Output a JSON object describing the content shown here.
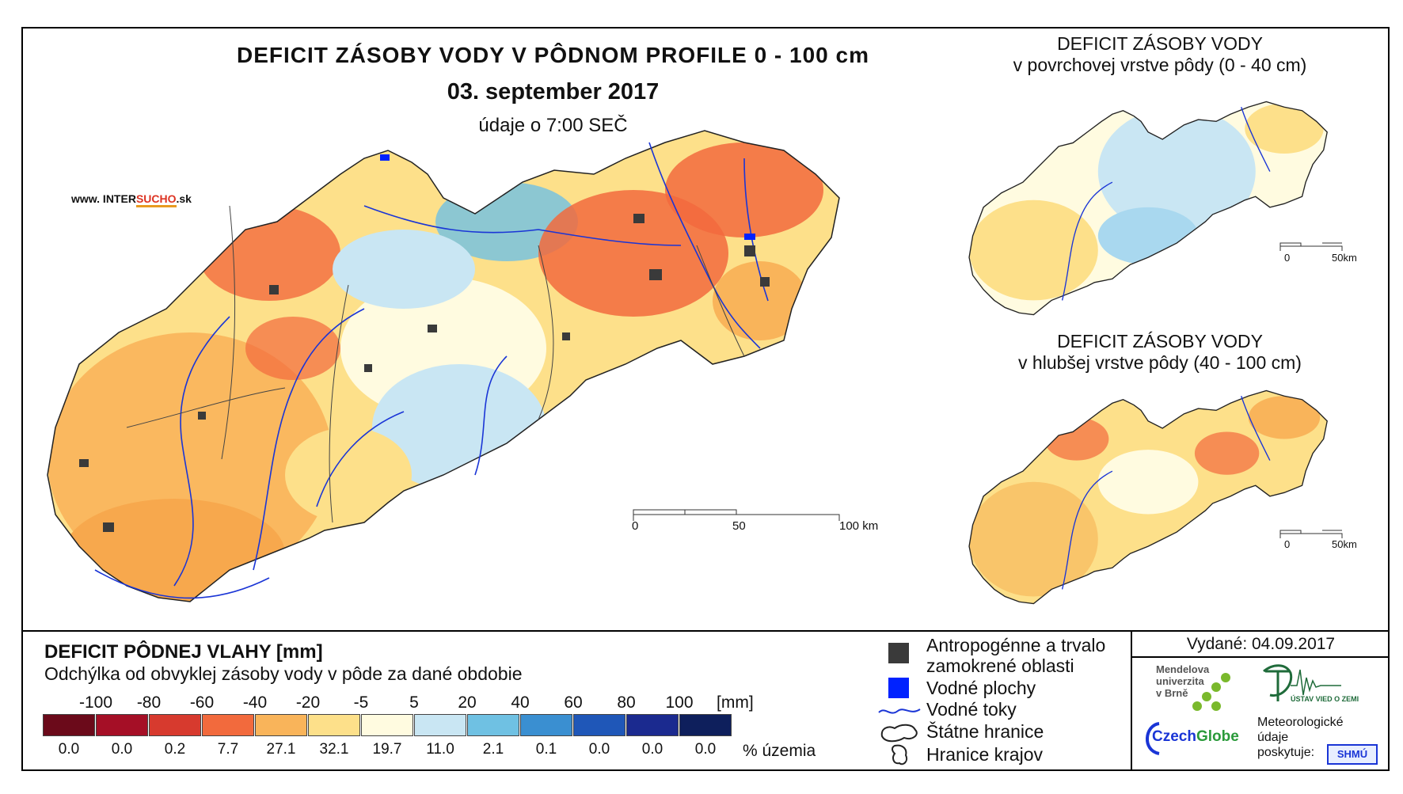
{
  "main": {
    "title": "DEFICIT ZÁSOBY VODY V PÔDNOM PROFILE 0 - 100 cm",
    "date": "03. september 2017",
    "subtitle": "údaje o 7:00 SEČ",
    "website_prefix": "www. INTER",
    "website_mid": "SUCHO",
    "website_suffix": ".sk",
    "scale": {
      "labels": [
        "0",
        "50",
        "100 km"
      ]
    }
  },
  "inset_top": {
    "title_line1": "DEFICIT ZÁSOBY VODY",
    "title_line2": "v povrchovej vrstve pôdy (0 - 40 cm)",
    "scale_labels": [
      "0",
      "50km"
    ]
  },
  "inset_bottom": {
    "title_line1": "DEFICIT ZÁSOBY VODY",
    "title_line2": "v hlubšej vrstve pôdy (40 - 100 cm)",
    "scale_labels": [
      "0",
      "50km"
    ]
  },
  "legend": {
    "title": "DEFICIT PÔDNEJ VLAHY [mm]",
    "subtitle": "Odchýlka od obvyklej zásoby vody v pôde za dané obdobie",
    "thresholds": [
      "-100",
      "-80",
      "-60",
      "-40",
      "-20",
      "-5",
      "5",
      "20",
      "40",
      "60",
      "80",
      "100"
    ],
    "unit": "[mm]",
    "colors": [
      "#6b0a1a",
      "#a50f26",
      "#d73a2e",
      "#f26a3d",
      "#f9b45a",
      "#fde08a",
      "#fffbe0",
      "#c9e6f3",
      "#6fc1e3",
      "#3a8fd1",
      "#1f57b8",
      "#1b2a8f",
      "#0e1f5c"
    ],
    "percentages": [
      "0.0",
      "0.0",
      "0.2",
      "7.7",
      "27.1",
      "32.1",
      "19.7",
      "11.0",
      "2.1",
      "0.1",
      "0.0",
      "0.0",
      "0.0"
    ],
    "pct_label": "% územia"
  },
  "symbols": {
    "items": [
      {
        "label_line1": "Antropogénne a trvalo",
        "label_line2": "zamokrené oblasti",
        "icon": "dark-square-icon"
      },
      {
        "label_line1": "Vodné plochy",
        "icon": "blue-square-icon"
      },
      {
        "label_line1": "Vodné toky",
        "icon": "river-line-icon"
      },
      {
        "label_line1": "Štátne hranice",
        "icon": "state-border-icon"
      },
      {
        "label_line1": "Hranice krajov",
        "icon": "region-border-icon"
      }
    ]
  },
  "issued": {
    "label": "Vydané: 04.09.2017"
  },
  "logos": {
    "mendel": [
      "Mendelova",
      "univerzita",
      "v Brně"
    ],
    "czechglobe_a": "Czech",
    "czechglobe_b": "Globe",
    "uvoz": "ÚSTAV VIED O ZEMI",
    "meteo": [
      "Meteorologické",
      "údaje",
      "poskytuje:"
    ],
    "shmu": "SHMÚ"
  }
}
